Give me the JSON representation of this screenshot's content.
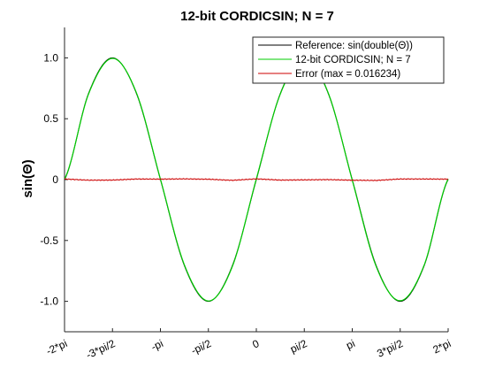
{
  "chart_data": {
    "type": "line",
    "title": "12-bit CORDICSIN; N = 7",
    "xlabel": "",
    "ylabel": "sin(Θ)",
    "xlim": [
      -6.283185,
      6.283185
    ],
    "ylim": [
      -1.25,
      1.25
    ],
    "grid": false,
    "legend_position": "top-right",
    "x_ticks": [
      {
        "value": -6.283185,
        "label": "-2*pi"
      },
      {
        "value": -4.712389,
        "label": "-3*pi/2"
      },
      {
        "value": -3.141593,
        "label": "-pi"
      },
      {
        "value": -1.570796,
        "label": "-pi/2"
      },
      {
        "value": 0,
        "label": "0"
      },
      {
        "value": 1.570796,
        "label": "pi/2"
      },
      {
        "value": 3.141593,
        "label": "pi"
      },
      {
        "value": 4.712389,
        "label": "3*pi/2"
      },
      {
        "value": 6.283185,
        "label": "2*pi"
      }
    ],
    "y_ticks": [
      {
        "value": -1,
        "label": "-1.0"
      },
      {
        "value": -0.5,
        "label": "-0.5"
      },
      {
        "value": 0,
        "label": "0"
      },
      {
        "value": 0.5,
        "label": "0.5"
      },
      {
        "value": 1,
        "label": "1.0"
      }
    ],
    "series": [
      {
        "name": "Reference: sin(double(Θ))",
        "color": "#000000",
        "x": [
          -6.283185,
          -5.497787,
          -4.712389,
          -3.926991,
          -3.141593,
          -2.356194,
          -1.570796,
          -0.785398,
          0,
          0.785398,
          1.570796,
          2.356194,
          3.141593,
          3.926991,
          4.712389,
          5.497787,
          6.283185
        ],
        "y": [
          0,
          0.7071,
          1,
          0.7071,
          0,
          -0.7071,
          -1,
          -0.7071,
          0,
          0.7071,
          1,
          0.7071,
          0,
          -0.7071,
          -1,
          -0.7071,
          0
        ]
      },
      {
        "name": "12-bit CORDICSIN; N = 7",
        "color": "#00cc00",
        "x": [
          -6.283185,
          -5.497787,
          -4.712389,
          -3.926991,
          -3.141593,
          -2.356194,
          -1.570796,
          -0.785398,
          0,
          0.785398,
          1.570796,
          2.356194,
          3.141593,
          3.926991,
          4.712389,
          5.497787,
          6.283185
        ],
        "y": [
          0.005,
          0.702,
          0.996,
          0.712,
          0.004,
          -0.701,
          -0.997,
          -0.713,
          0.006,
          0.703,
          0.998,
          0.711,
          -0.005,
          -0.714,
          -0.995,
          -0.702,
          0.004
        ]
      },
      {
        "name": "Error (max = 0.016234)",
        "color": "#cc0000",
        "x": [
          -6.283185,
          -5.497787,
          -4.712389,
          -3.926991,
          -3.141593,
          -2.356194,
          -1.570796,
          -0.785398,
          0,
          0.785398,
          1.570796,
          2.356194,
          3.141593,
          3.926991,
          4.712389,
          5.497787,
          6.283185
        ],
        "y": [
          0.005,
          -0.005,
          -0.004,
          0.005,
          0.004,
          0.006,
          0.003,
          -0.006,
          0.006,
          -0.004,
          -0.002,
          0,
          -0.005,
          -0.007,
          0.005,
          0.005,
          0.004
        ]
      }
    ]
  }
}
